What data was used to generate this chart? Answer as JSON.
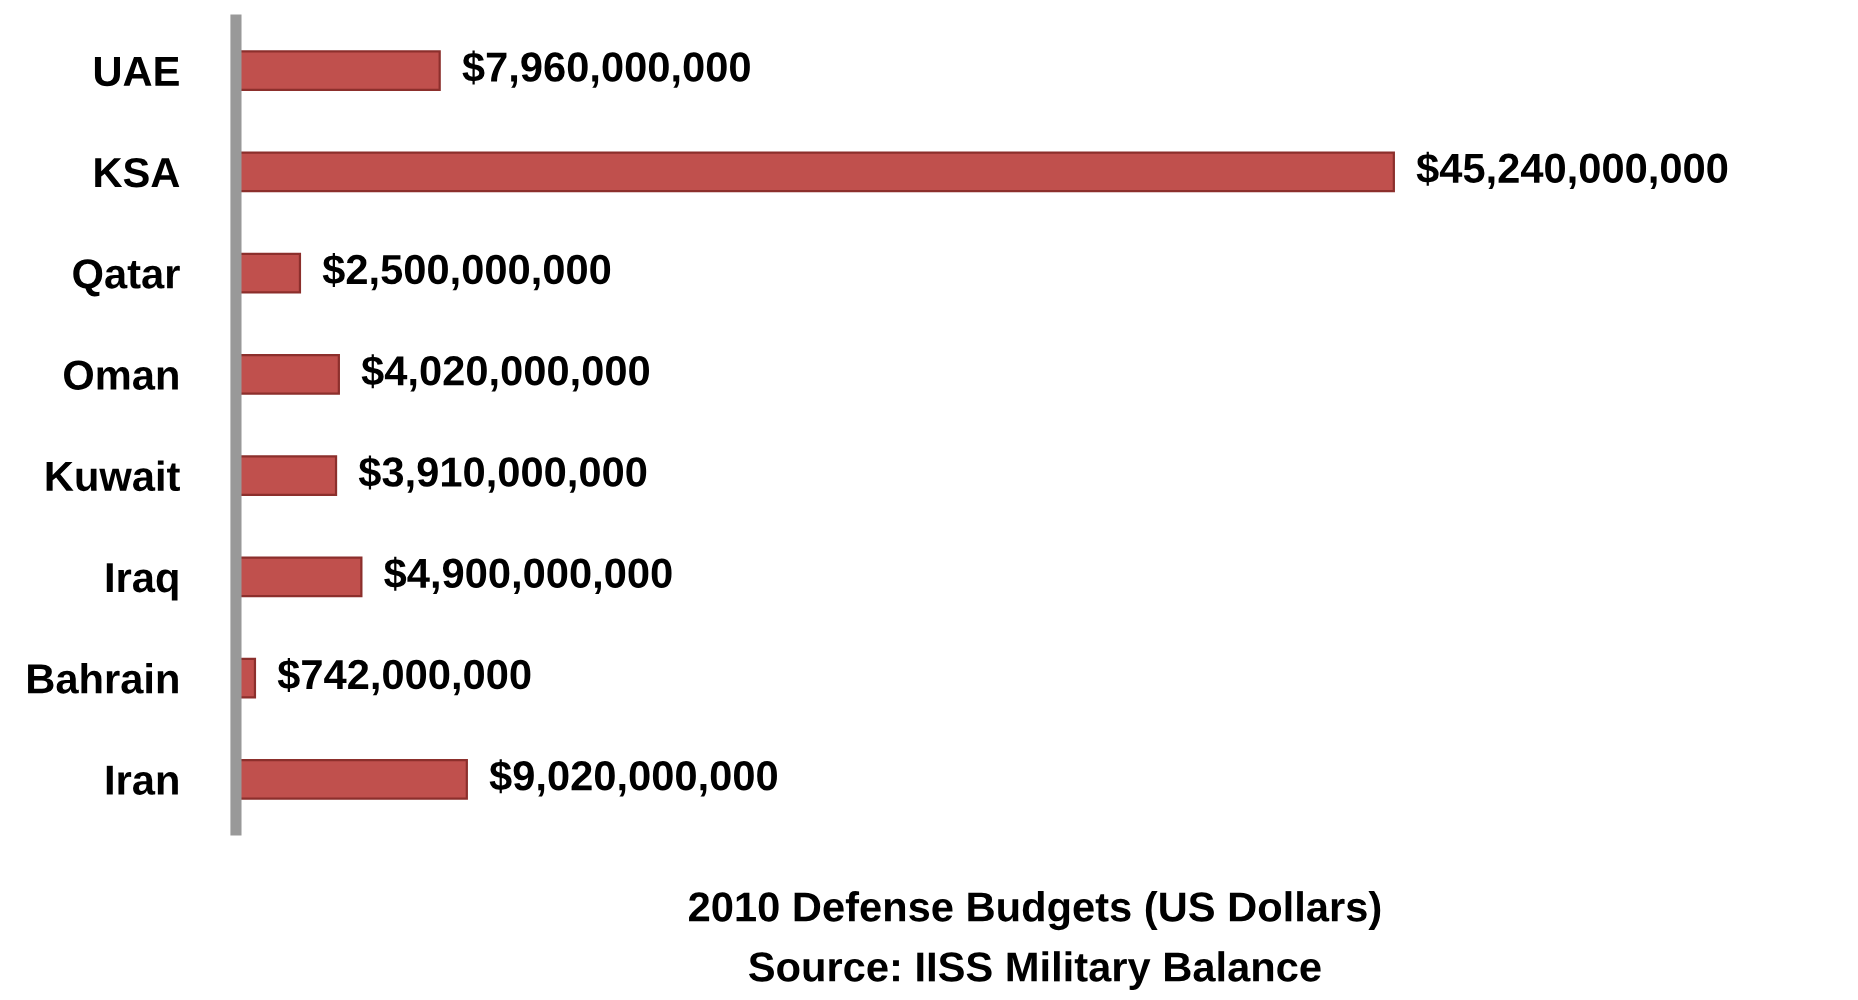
{
  "chart_data": {
    "type": "bar",
    "orientation": "horizontal",
    "xlabel": "2010 Defense Budgets (US Dollars)",
    "annotations": [
      "Source: IISS Military Balance"
    ],
    "categories": [
      "UAE",
      "KSA",
      "Qatar",
      "Oman",
      "Kuwait",
      "Iraq",
      "Bahrain",
      "Iran"
    ],
    "values": [
      7960000000,
      45240000000,
      2500000000,
      4020000000,
      3910000000,
      4900000000,
      742000000,
      9020000000
    ],
    "value_labels": [
      "$7,960,000,000",
      "$45,240,000,000",
      "$2,500,000,000",
      "$4,020,000,000",
      "$3,910,000,000",
      "$4,900,000,000",
      "$742,000,000",
      "$9,020,000,000"
    ],
    "color": "#c0504d",
    "grid": false,
    "legend": false
  }
}
